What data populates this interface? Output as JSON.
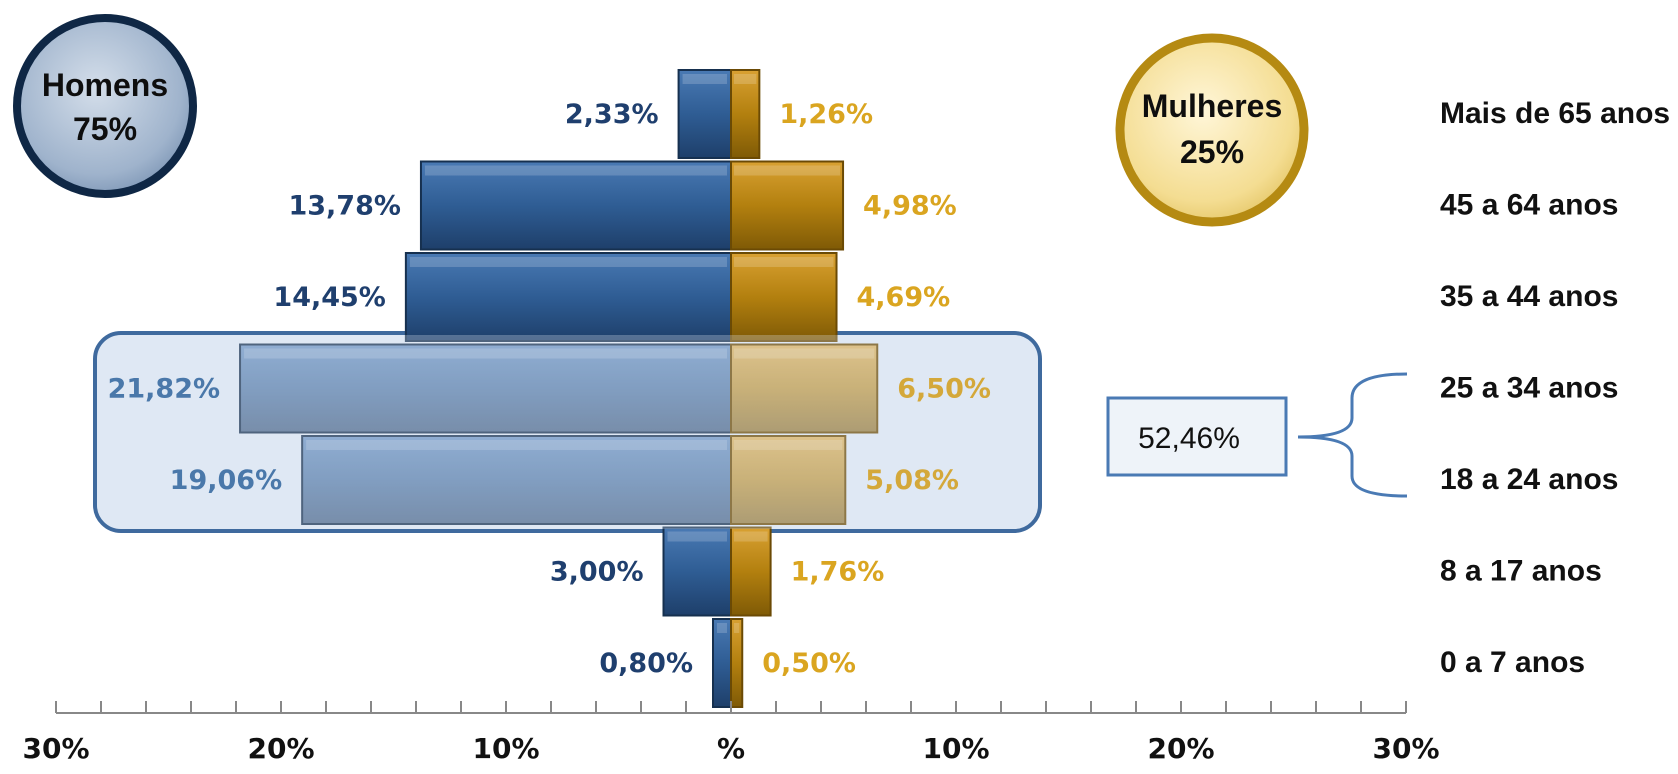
{
  "chart_data": {
    "type": "bar",
    "subtype": "population-pyramid",
    "categories": [
      "Mais de 65 anos",
      "45 a 64 anos",
      "35 a 44 anos",
      "25 a 34 anos",
      "18 a 24 anos",
      "8 a 17 anos",
      "0 a 7 anos"
    ],
    "series": [
      {
        "name": "Homens",
        "side": "left",
        "color": "#2d5a8e",
        "values": [
          2.33,
          13.78,
          14.45,
          21.82,
          19.06,
          3.0,
          0.8
        ],
        "labels": [
          "2,33%",
          "13,78%",
          "14,45%",
          "21,82%",
          "19,06%",
          "3,00%",
          "0,80%"
        ]
      },
      {
        "name": "Mulheres",
        "side": "right",
        "color": "#b8860b",
        "values": [
          1.26,
          4.98,
          4.69,
          6.5,
          5.08,
          1.76,
          0.5
        ],
        "labels": [
          "1,26%",
          "4,98%",
          "4,69%",
          "6,50%",
          "5,08%",
          "1,76%",
          "0,50%"
        ]
      }
    ],
    "xlim": [
      -30,
      30
    ],
    "x_tick_labels": [
      "30%",
      "20%",
      "10%",
      "%",
      "10%",
      "20%",
      "30%"
    ],
    "x_tick_values": [
      -30,
      -20,
      -10,
      0,
      10,
      20,
      30
    ],
    "grid": false,
    "highlight": {
      "categories": [
        "25 a 34 anos",
        "18 a 24 anos"
      ],
      "total_label": "52,46%"
    },
    "badges": {
      "men": {
        "title": "Homens",
        "value": "75%"
      },
      "women": {
        "title": "Mulheres",
        "value": "25%"
      }
    }
  },
  "colors": {
    "men_label": "#1f3f6e",
    "women_label": "#daa520",
    "men_label_highlight": "#4a78aa",
    "women_label_highlight": "#d4a83a",
    "highlight_border": "#3f6a9e",
    "highlight_fill": "#dde7f3"
  }
}
